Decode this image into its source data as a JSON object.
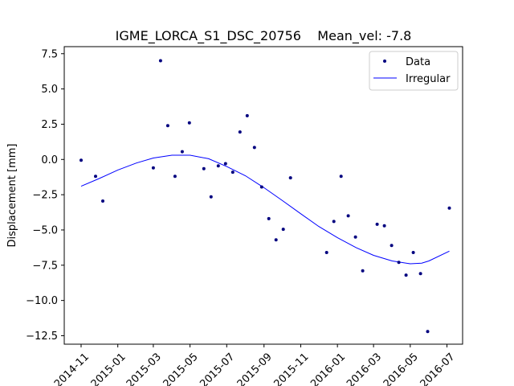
{
  "chart_data": {
    "type": "scatter",
    "title": "IGME_LORCA_S1_DSC_20756    Mean_vel: -7.8",
    "xlabel": "",
    "ylabel": "Displacement [mm]",
    "xlim": [
      "2014-10-04",
      "2016-07-27"
    ],
    "ylim": [
      -13.1,
      8.0
    ],
    "x_ticks": [
      "2014-11",
      "2015-01",
      "2015-03",
      "2015-05",
      "2015-07",
      "2015-09",
      "2015-11",
      "2016-01",
      "2016-03",
      "2016-05",
      "2016-07"
    ],
    "y_ticks": [
      7.5,
      5.0,
      2.5,
      0.0,
      -2.5,
      -5.0,
      -7.5,
      -10.0,
      -12.5
    ],
    "y_tick_labels": [
      "7.5",
      "5.0",
      "2.5",
      "0.0",
      "−2.5",
      "−5.0",
      "−7.5",
      "−10.0",
      "−12.5"
    ],
    "legend": {
      "position": "top-right",
      "entries": [
        "Data",
        "Irregular"
      ]
    },
    "colors": {
      "data": "#00007f",
      "irregular": "#0000ff"
    },
    "series": [
      {
        "name": "Data",
        "kind": "scatter",
        "x": [
          "2014-11-01",
          "2014-11-25",
          "2014-12-07",
          "2015-03-01",
          "2015-03-13",
          "2015-03-25",
          "2015-04-06",
          "2015-04-18",
          "2015-04-30",
          "2015-05-24",
          "2015-06-05",
          "2015-06-17",
          "2015-06-29",
          "2015-07-11",
          "2015-07-23",
          "2015-08-04",
          "2015-08-16",
          "2015-08-28",
          "2015-09-09",
          "2015-09-21",
          "2015-10-03",
          "2015-10-15",
          "2015-12-14",
          "2015-12-26",
          "2016-01-07",
          "2016-01-19",
          "2016-01-31",
          "2016-02-12",
          "2016-03-07",
          "2016-03-19",
          "2016-03-31",
          "2016-04-12",
          "2016-04-24",
          "2016-05-06",
          "2016-05-18",
          "2016-05-30",
          "2016-07-05"
        ],
        "y": [
          -0.05,
          -1.2,
          -2.95,
          -0.6,
          7.0,
          2.4,
          -1.2,
          0.55,
          2.6,
          -0.65,
          -2.65,
          -0.45,
          -0.3,
          -0.9,
          1.95,
          3.1,
          0.85,
          -1.95,
          -4.2,
          -5.7,
          -4.95,
          -1.3,
          -6.6,
          -4.4,
          -1.2,
          -4.0,
          -5.5,
          -7.9,
          -4.6,
          -4.7,
          -6.1,
          -7.3,
          -8.2,
          -6.6,
          -8.1,
          -12.2,
          -3.45
        ]
      },
      {
        "name": "Irregular",
        "kind": "line",
        "x": [
          "2014-11-01",
          "2014-12-01",
          "2015-01-01",
          "2015-02-01",
          "2015-03-01",
          "2015-04-01",
          "2015-05-01",
          "2015-06-01",
          "2015-07-01",
          "2015-08-01",
          "2015-09-01",
          "2015-10-01",
          "2015-11-01",
          "2015-12-01",
          "2016-01-01",
          "2016-02-01",
          "2016-03-01",
          "2016-04-01",
          "2016-05-01",
          "2016-05-20",
          "2016-06-01",
          "2016-07-05"
        ],
        "y": [
          -1.9,
          -1.35,
          -0.75,
          -0.25,
          0.1,
          0.3,
          0.3,
          0.05,
          -0.5,
          -1.15,
          -2.0,
          -2.9,
          -3.85,
          -4.75,
          -5.55,
          -6.25,
          -6.8,
          -7.2,
          -7.4,
          -7.35,
          -7.2,
          -6.5
        ]
      }
    ]
  }
}
